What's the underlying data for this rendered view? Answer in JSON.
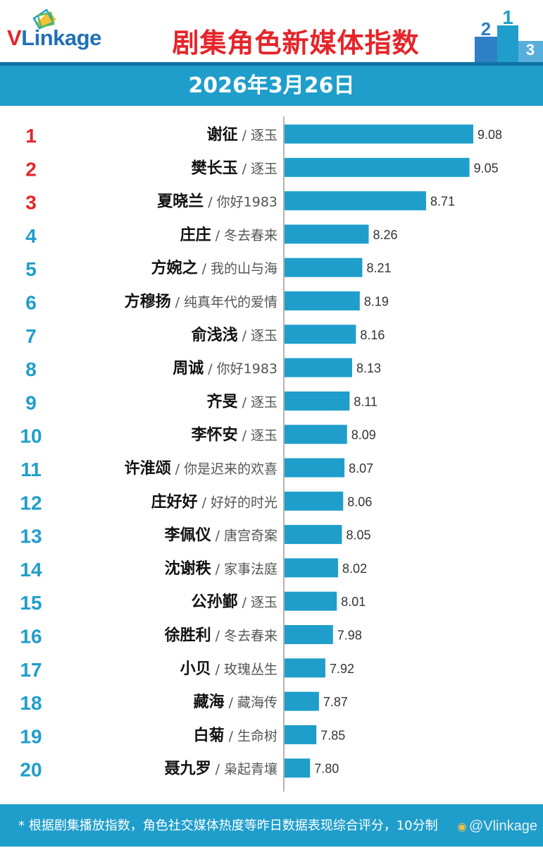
{
  "brand": {
    "logo_v": "V",
    "logo_rest": "Linkage"
  },
  "header": {
    "title": "剧集角色新媒体指数",
    "date": "2026年3月26日"
  },
  "footer": {
    "note": "* 根据剧集播放指数，角色社交媒体热度等昨日数据表现综合评分，10分制",
    "watermark": "@Vlinkage"
  },
  "colors": {
    "bar": "#1f9ecb",
    "top_rank": "#e5252a",
    "rank": "#1f9ecb",
    "header_bg": "#1f9ecb",
    "title": "#e5252a"
  },
  "podium": {
    "labels": [
      "2",
      "1",
      "3"
    ]
  },
  "chart_data": {
    "type": "bar",
    "orientation": "horizontal",
    "title": "剧集角色新媒体指数",
    "subtitle": "2026年3月26日",
    "categories": [
      "谢征",
      "樊长玉",
      "夏晓兰",
      "庄庄",
      "方婉之",
      "方穆扬",
      "俞浅浅",
      "周诚",
      "齐旻",
      "李怀安",
      "许淮颂",
      "庄好好",
      "李佩仪",
      "沈谢秩",
      "公孙鄞",
      "徐胜利",
      "小贝",
      "藏海",
      "白菊",
      "聂九罗"
    ],
    "dramas": [
      "逐玉",
      "逐玉",
      "你好1983",
      "冬去春来",
      "我的山与海",
      "纯真年代的爱情",
      "逐玉",
      "你好1983",
      "逐玉",
      "逐玉",
      "你是迟来的欢喜",
      "好好的时光",
      "唐宫奇案",
      "家事法庭",
      "逐玉",
      "冬去春来",
      "玫瑰丛生",
      "藏海传",
      "生命树",
      "枭起青壤"
    ],
    "ranks": [
      "1",
      "2",
      "3",
      "4",
      "5",
      "6",
      "7",
      "8",
      "9",
      "10",
      "11",
      "12",
      "13",
      "14",
      "15",
      "16",
      "17",
      "18",
      "19",
      "20"
    ],
    "values": [
      9.08,
      9.05,
      8.71,
      8.26,
      8.21,
      8.19,
      8.16,
      8.13,
      8.11,
      8.09,
      8.07,
      8.06,
      8.05,
      8.02,
      8.01,
      7.98,
      7.92,
      7.87,
      7.85,
      7.8
    ],
    "value_labels": [
      "9.08",
      "9.05",
      "8.71",
      "8.26",
      "8.21",
      "8.19",
      "8.16",
      "8.13",
      "8.11",
      "8.09",
      "8.07",
      "8.06",
      "8.05",
      "8.02",
      "8.01",
      "7.98",
      "7.92",
      "7.87",
      "7.85",
      "7.80"
    ],
    "separator": "/",
    "xlim": [
      7.6,
      9.08
    ],
    "xlabel": "",
    "ylabel": "",
    "grid": false,
    "legend": "none"
  }
}
